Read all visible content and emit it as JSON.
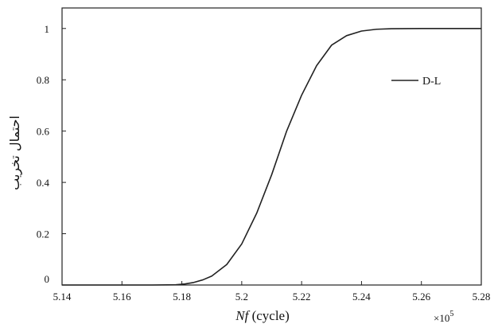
{
  "chart_data": {
    "type": "line",
    "title": "",
    "xlabel_italic": "Nf",
    "xlabel_rest": " (cycle)",
    "ylabel": "احتمال تخریب",
    "x_multiplier_base": "×10",
    "x_multiplier_exp": "5",
    "xlim": [
      5.14,
      5.28
    ],
    "ylim": [
      0,
      1.08
    ],
    "xticks": [
      5.14,
      5.16,
      5.18,
      5.2,
      5.22,
      5.24,
      5.26,
      5.28
    ],
    "xtick_labels": [
      "5.14",
      "5.16",
      "5.18",
      "5.2",
      "5.22",
      "5.24",
      "5.26",
      "5.28"
    ],
    "yticks": [
      0,
      0.2,
      0.4,
      0.6,
      0.8,
      1
    ],
    "ytick_labels": [
      "0",
      "0.2",
      "0.4",
      "0.6",
      "0.8",
      "1"
    ],
    "grid": false,
    "legend_position": "upper-right",
    "series": [
      {
        "name": "D-L",
        "color": "#222222",
        "x": [
          5.14,
          5.17,
          5.178,
          5.181,
          5.184,
          5.187,
          5.19,
          5.195,
          5.2,
          5.205,
          5.21,
          5.215,
          5.22,
          5.225,
          5.23,
          5.235,
          5.24,
          5.245,
          5.25,
          5.26,
          5.27,
          5.28
        ],
        "y": [
          0,
          0,
          0.001,
          0.004,
          0.01,
          0.02,
          0.035,
          0.08,
          0.16,
          0.28,
          0.43,
          0.6,
          0.74,
          0.855,
          0.935,
          0.972,
          0.99,
          0.997,
          0.999,
          1,
          1,
          1
        ]
      }
    ]
  }
}
